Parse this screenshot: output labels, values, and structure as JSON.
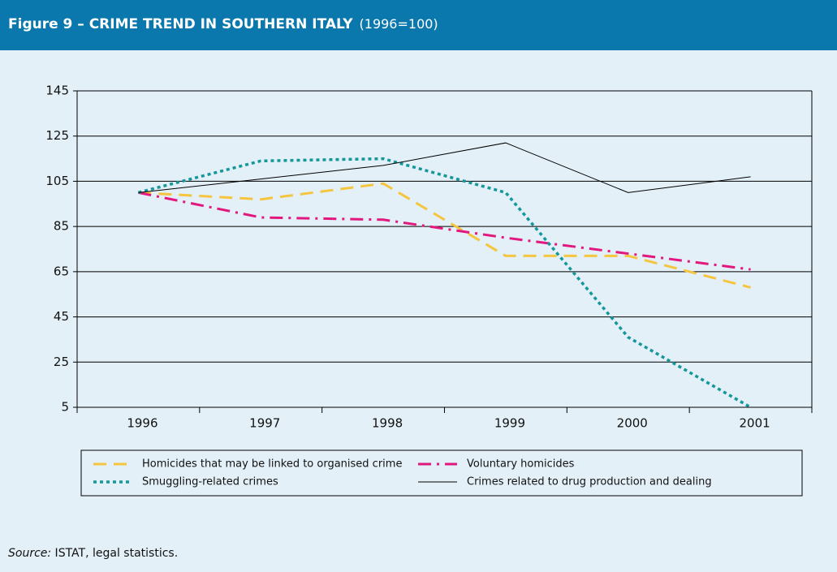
{
  "chart_data": {
    "type": "line",
    "title": "Figure 9 – CRIME TREND IN SOUTHERN ITALY",
    "subtitle": "(1996=100)",
    "categories": [
      "1996",
      "1997",
      "1998",
      "1999",
      "2000",
      "2001"
    ],
    "series": [
      {
        "name": "Homicides that may be linked to organised crime",
        "color": "#f5c53f",
        "values": [
          100,
          97,
          104,
          72,
          72,
          58
        ]
      },
      {
        "name": "Voluntary homicides",
        "color": "#e2187f",
        "values": [
          100,
          89,
          88,
          80,
          73,
          66
        ]
      },
      {
        "name": "Smuggling-related crimes",
        "color": "#13979b",
        "values": [
          100,
          114,
          115,
          100,
          36,
          5
        ]
      },
      {
        "name": "Crimes related to drug production and dealing",
        "color": "#000000",
        "values": [
          100,
          106,
          112,
          122,
          100,
          107
        ]
      }
    ],
    "ylim": [
      5,
      145
    ],
    "yticks": [
      5,
      25,
      45,
      65,
      85,
      105,
      125,
      145
    ],
    "grid": true,
    "legend": "bottom",
    "source_label": "Source:",
    "source_text": " ISTAT, legal statistics."
  }
}
